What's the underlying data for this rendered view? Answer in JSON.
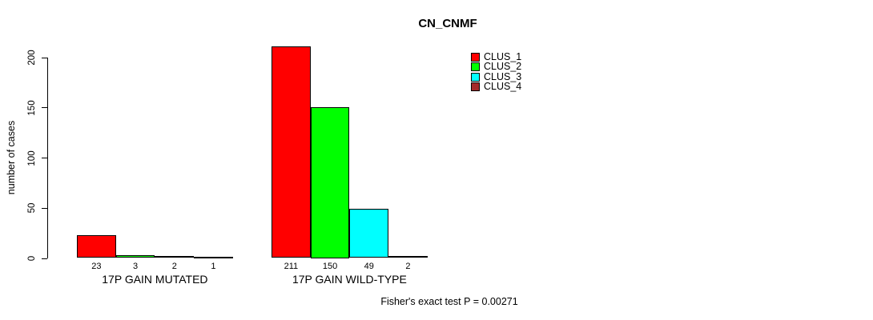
{
  "title": "CN_CNMF",
  "footnote": "Fisher's exact test P = 0.00271",
  "colors": {
    "background": "#ffffff",
    "axis": "#000000",
    "text": "#000000"
  },
  "chart_data": {
    "type": "bar",
    "title": "CN_CNMF",
    "xlabel": "",
    "ylabel": "number of cases",
    "ylim": [
      0,
      200
    ],
    "yticks": [
      0,
      50,
      100,
      150,
      200
    ],
    "grid": false,
    "legend_position": "top-right",
    "categories": [
      "17P GAIN MUTATED",
      "17P GAIN WILD-TYPE"
    ],
    "series": [
      {
        "name": "CLUS_1",
        "color": "#ff0000",
        "values": [
          23,
          211
        ]
      },
      {
        "name": "CLUS_2",
        "color": "#00ff00",
        "values": [
          3,
          150
        ]
      },
      {
        "name": "CLUS_3",
        "color": "#00ffff",
        "values": [
          2,
          49
        ]
      },
      {
        "name": "CLUS_4",
        "color": "#a52a2a",
        "values": [
          1,
          2
        ]
      }
    ],
    "bar_value_labels": [
      [
        "23",
        "3",
        "2",
        "1"
      ],
      [
        "211",
        "150",
        "49",
        "2"
      ]
    ],
    "footnote": "Fisher's exact test P = 0.00271"
  }
}
